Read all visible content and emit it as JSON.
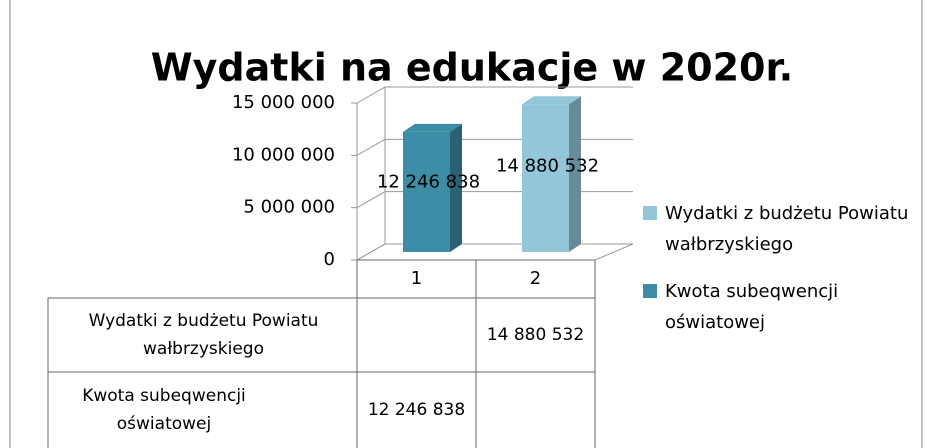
{
  "chart_data": {
    "type": "bar3d",
    "title": "Wydatki na edukacje w 2020r.",
    "categories": [
      "1",
      "2"
    ],
    "series": [
      {
        "name": "Wydatki z budżetu Powiatu wałbrzyskiego",
        "color": "#93c6d8",
        "values": [
          null,
          14880532
        ],
        "value_labels": [
          null,
          "14 880 532"
        ]
      },
      {
        "name": "Kwota subeqwencji oświatowej",
        "color": "#3b8ea5",
        "values": [
          12246838,
          null
        ],
        "value_labels": [
          "12 246 838",
          null
        ]
      }
    ],
    "ylim": [
      0,
      15000000
    ],
    "yticks": [
      0,
      {
        "value": 5000000,
        "label": "5 000 000"
      },
      {
        "value": 10000000,
        "label": "10 000 000"
      },
      {
        "value": 15000000,
        "label": "15 000 000"
      }
    ],
    "grid": true,
    "legend": "right",
    "data_table": true
  }
}
